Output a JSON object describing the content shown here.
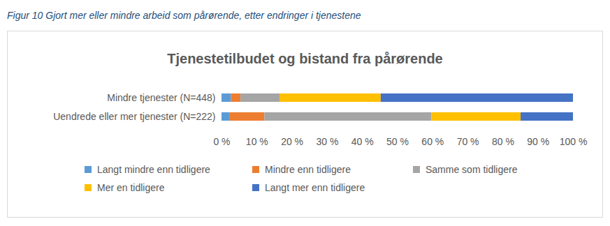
{
  "chart_data": {
    "type": "bar",
    "caption": "Figur 10 Gjort mer eller mindre arbeid som pårørende, etter endringer i tjenestene",
    "title": "Tjenestetilbudet og bistand fra pårørende",
    "orientation": "horizontal",
    "stacked": true,
    "grid": false,
    "legend": "bottom",
    "categories": [
      "Mindre tjenester (N=448)",
      "Uendrede eller mer tjenester (N=222)"
    ],
    "series": [
      {
        "name": "Langt mindre enn tidligere",
        "color": "#5b9bd5",
        "values": [
          2.7,
          2.2
        ]
      },
      {
        "name": "Mindre enn tidligere",
        "color": "#ed7d31",
        "values": [
          2.7,
          10.0
        ]
      },
      {
        "name": "Samme som tidligere",
        "color": "#a5a5a5",
        "values": [
          11.1,
          47.5
        ]
      },
      {
        "name": "Mer en tidligere",
        "color": "#ffc000",
        "values": [
          28.8,
          25.4
        ]
      },
      {
        "name": "Langt mer enn tidligere",
        "color": "#4472c4",
        "values": [
          54.7,
          14.9
        ]
      }
    ],
    "xlim": [
      0,
      100
    ],
    "xticks": [
      {
        "value": 0,
        "label": "0 %"
      },
      {
        "value": 10,
        "label": "10 %"
      },
      {
        "value": 20,
        "label": "20 %"
      },
      {
        "value": 30,
        "label": "30 %"
      },
      {
        "value": 40,
        "label": "40 %"
      },
      {
        "value": 50,
        "label": "50 %"
      },
      {
        "value": 60,
        "label": "60 %"
      },
      {
        "value": 70,
        "label": "70 %"
      },
      {
        "value": 80,
        "label": "80 %"
      },
      {
        "value": 90,
        "label": "90 %"
      },
      {
        "value": 100,
        "label": "100 %"
      }
    ]
  }
}
